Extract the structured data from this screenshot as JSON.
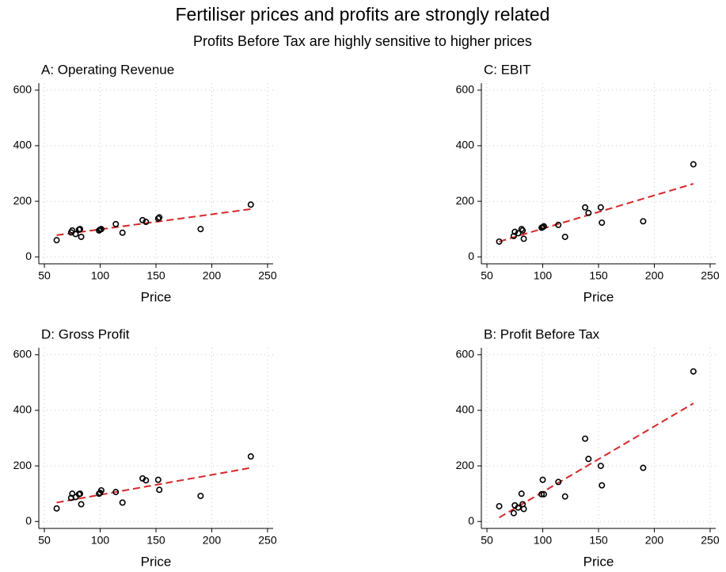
{
  "title": "Fertiliser prices and profits are strongly related",
  "subtitle": "Profits Before Tax are highly sensitive to higher prices",
  "chart_data": [
    {
      "type": "scatter",
      "title": "A: Operating Revenue",
      "x_label": "Price",
      "x": [
        61,
        74,
        75,
        78,
        81,
        82,
        83,
        99,
        100,
        101,
        114,
        120,
        138,
        141,
        152,
        153,
        190,
        235
      ],
      "values": [
        60,
        88,
        95,
        82,
        98,
        100,
        72,
        95,
        98,
        100,
        118,
        87,
        132,
        126,
        138,
        142,
        100,
        188
      ],
      "color": "#000000",
      "fit": {
        "x": [
          61,
          235
        ],
        "values": [
          78,
          172
        ],
        "color": "#d62728"
      },
      "xlim": [
        45,
        255
      ],
      "xticks": [
        50,
        100,
        150,
        200,
        250
      ],
      "ylim": [
        -25,
        625
      ],
      "yticks": [
        0,
        200,
        400,
        600
      ],
      "grid": true
    },
    {
      "type": "scatter",
      "title": "C: EBIT",
      "x_label": "Price",
      "x": [
        61,
        74,
        75,
        78,
        81,
        82,
        83,
        99,
        100,
        101,
        114,
        120,
        138,
        141,
        152,
        153,
        190,
        235
      ],
      "values": [
        55,
        75,
        90,
        85,
        100,
        95,
        65,
        105,
        107,
        110,
        115,
        72,
        178,
        158,
        178,
        123,
        128,
        333
      ],
      "color": "#000000",
      "fit": {
        "x": [
          61,
          235
        ],
        "values": [
          55,
          263
        ],
        "color": "#d62728"
      },
      "xlim": [
        45,
        255
      ],
      "xticks": [
        50,
        100,
        150,
        200,
        250
      ],
      "ylim": [
        -25,
        625
      ],
      "yticks": [
        0,
        200,
        400,
        600
      ],
      "grid": true
    },
    {
      "type": "scatter",
      "title": "D: Gross Profit",
      "x_label": "Price",
      "x": [
        61,
        74,
        75,
        78,
        81,
        82,
        83,
        99,
        100,
        101,
        114,
        120,
        138,
        141,
        152,
        153,
        190,
        235
      ],
      "values": [
        47,
        85,
        100,
        88,
        98,
        100,
        62,
        100,
        103,
        112,
        106,
        68,
        155,
        148,
        150,
        114,
        92,
        234
      ],
      "color": "#000000",
      "fit": {
        "x": [
          61,
          235
        ],
        "values": [
          68,
          193
        ],
        "color": "#d62728"
      },
      "xlim": [
        45,
        255
      ],
      "xticks": [
        50,
        100,
        150,
        200,
        250
      ],
      "ylim": [
        -25,
        625
      ],
      "yticks": [
        0,
        200,
        400,
        600
      ],
      "grid": true
    },
    {
      "type": "scatter",
      "title": "B: Profit Before Tax",
      "x_label": "Price",
      "x": [
        61,
        74,
        75,
        78,
        81,
        82,
        83,
        99,
        100,
        101,
        114,
        120,
        138,
        141,
        152,
        153,
        190,
        235
      ],
      "values": [
        55,
        30,
        58,
        50,
        100,
        62,
        45,
        98,
        150,
        98,
        142,
        90,
        298,
        225,
        200,
        130,
        193,
        540
      ],
      "color": "#000000",
      "fit": {
        "x": [
          61,
          235
        ],
        "values": [
          14,
          425
        ],
        "color": "#d62728"
      },
      "xlim": [
        45,
        255
      ],
      "xticks": [
        50,
        100,
        150,
        200,
        250
      ],
      "ylim": [
        -25,
        625
      ],
      "yticks": [
        0,
        200,
        400,
        600
      ],
      "grid": true
    }
  ]
}
